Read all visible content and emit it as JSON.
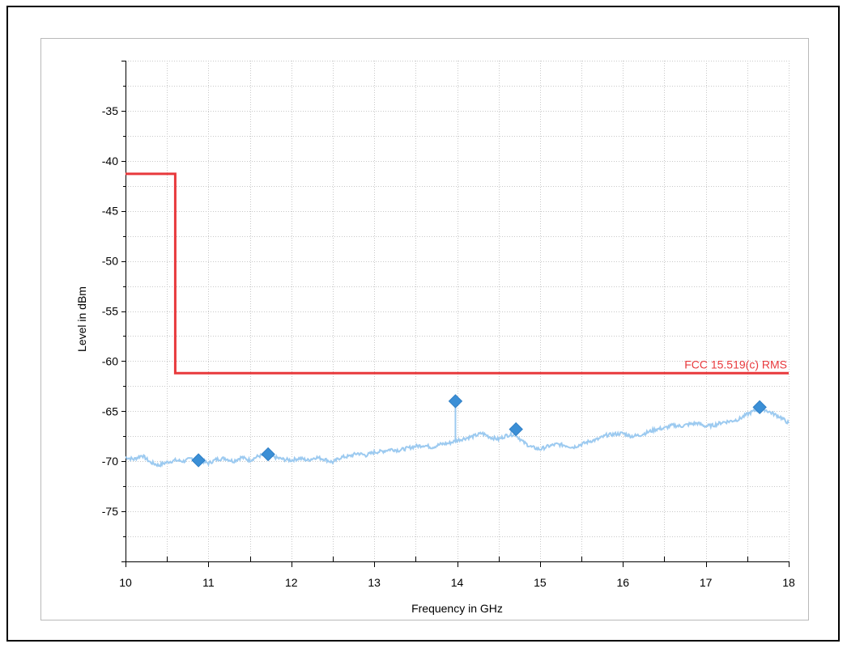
{
  "chart_data": {
    "type": "line",
    "title": "",
    "xlabel": "Frequency in GHz",
    "ylabel": "Level in dBm",
    "xlim": [
      10,
      18
    ],
    "ylim": [
      -80,
      -30
    ],
    "xticks": [
      10,
      11,
      12,
      13,
      14,
      15,
      16,
      17,
      18
    ],
    "yticks": [
      -75,
      -70,
      -65,
      -60,
      -55,
      -50,
      -45,
      -40,
      -35
    ],
    "grid": true,
    "colors": {
      "trace": "#9ccaf0",
      "limit": "#e8393c",
      "marker": "#3b8fd6",
      "grid": "#c8c8c8"
    },
    "limit_line": {
      "name": "FCC 15.519(c) RMS",
      "x": [
        10,
        10.6,
        10.6,
        18
      ],
      "y": [
        -41.3,
        -41.3,
        -61.2,
        -61.2
      ]
    },
    "trace": {
      "x": [
        10.0,
        10.1,
        10.2,
        10.3,
        10.4,
        10.5,
        10.6,
        10.7,
        10.8,
        10.9,
        11.0,
        11.1,
        11.2,
        11.3,
        11.4,
        11.5,
        11.6,
        11.7,
        11.8,
        11.9,
        12.0,
        12.1,
        12.2,
        12.3,
        12.4,
        12.5,
        12.6,
        12.7,
        12.8,
        12.9,
        13.0,
        13.1,
        13.2,
        13.3,
        13.4,
        13.5,
        13.6,
        13.7,
        13.8,
        13.9,
        14.0,
        14.1,
        14.2,
        14.3,
        14.4,
        14.5,
        14.6,
        14.7,
        14.8,
        14.9,
        15.0,
        15.1,
        15.2,
        15.3,
        15.4,
        15.5,
        15.6,
        15.7,
        15.8,
        15.9,
        16.0,
        16.1,
        16.2,
        16.3,
        16.4,
        16.5,
        16.6,
        16.7,
        16.8,
        16.9,
        17.0,
        17.1,
        17.2,
        17.3,
        17.4,
        17.5,
        17.6,
        17.7,
        17.8,
        17.9,
        18.0
      ],
      "y": [
        -69.6,
        -69.8,
        -69.4,
        -70.1,
        -70.4,
        -70.1,
        -69.9,
        -70.0,
        -69.7,
        -69.9,
        -70.2,
        -69.8,
        -69.7,
        -70.0,
        -69.6,
        -69.9,
        -69.5,
        -69.3,
        -69.6,
        -69.8,
        -69.9,
        -69.7,
        -69.9,
        -69.6,
        -69.8,
        -70.1,
        -69.6,
        -69.5,
        -69.2,
        -69.4,
        -69.1,
        -69.0,
        -68.8,
        -68.9,
        -68.7,
        -68.5,
        -68.4,
        -68.6,
        -68.3,
        -68.2,
        -67.9,
        -67.7,
        -67.5,
        -67.2,
        -67.6,
        -67.8,
        -67.4,
        -67.3,
        -68.1,
        -68.6,
        -68.8,
        -68.5,
        -68.3,
        -68.4,
        -68.6,
        -68.3,
        -68.0,
        -67.8,
        -67.4,
        -67.3,
        -67.2,
        -67.5,
        -67.4,
        -67.1,
        -66.8,
        -66.7,
        -66.4,
        -66.5,
        -66.3,
        -66.2,
        -66.5,
        -66.4,
        -66.1,
        -66.0,
        -65.8,
        -65.3,
        -64.9,
        -64.8,
        -65.2,
        -65.6,
        -66.2
      ]
    },
    "spike": {
      "x": 13.98,
      "y_base": -68.0,
      "y_top": -64.0
    },
    "markers": [
      {
        "x": 10.88,
        "y": -69.9
      },
      {
        "x": 11.72,
        "y": -69.3
      },
      {
        "x": 13.98,
        "y": -64.0
      },
      {
        "x": 14.71,
        "y": -66.8
      },
      {
        "x": 17.65,
        "y": -64.6
      }
    ]
  }
}
